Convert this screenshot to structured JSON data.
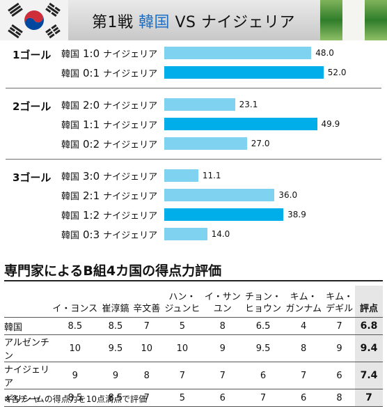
{
  "header": {
    "title_prefix": "第1戦",
    "title_korea": "韓国",
    "title_suffix": "VS ナイジェリア",
    "flags": [
      "korea-flag",
      "nigeria-flag"
    ]
  },
  "colors": {
    "bar_light": "#7fd3f0",
    "bar_dark": "#00aeea",
    "accent": "#1c6fc4"
  },
  "chart_data": [
    {
      "type": "bar",
      "orientation": "horizontal",
      "groups": [
        {
          "label": "1ゴール",
          "rows": [
            {
              "korea": "韓国",
              "score": "1:0",
              "nigeria": "ナイジェリア",
              "value": 48.0,
              "display": "48.0",
              "highlight": false
            },
            {
              "korea": "韓国",
              "score": "0:1",
              "nigeria": "ナイジェリア",
              "value": 52.0,
              "display": "52.0",
              "highlight": true
            }
          ]
        },
        {
          "label": "2ゴール",
          "rows": [
            {
              "korea": "韓国",
              "score": "2:0",
              "nigeria": "ナイジェリア",
              "value": 23.1,
              "display": "23.1",
              "highlight": false
            },
            {
              "korea": "韓国",
              "score": "1:1",
              "nigeria": "ナイジェリア",
              "value": 49.9,
              "display": "49.9",
              "highlight": true
            },
            {
              "korea": "韓国",
              "score": "0:2",
              "nigeria": "ナイジェリア",
              "value": 27.0,
              "display": "27.0",
              "highlight": false
            }
          ]
        },
        {
          "label": "3ゴール",
          "rows": [
            {
              "korea": "韓国",
              "score": "3:0",
              "nigeria": "ナイジェリア",
              "value": 11.1,
              "display": "11.1",
              "highlight": false
            },
            {
              "korea": "韓国",
              "score": "2:1",
              "nigeria": "ナイジェリア",
              "value": 36.0,
              "display": "36.0",
              "highlight": false
            },
            {
              "korea": "韓国",
              "score": "1:2",
              "nigeria": "ナイジェリア",
              "value": 38.9,
              "display": "38.9",
              "highlight": true
            },
            {
              "korea": "韓国",
              "score": "0:3",
              "nigeria": "ナイジェリア",
              "value": 14.0,
              "display": "14.0",
              "highlight": false
            }
          ]
        }
      ]
    },
    {
      "type": "table",
      "title": "専門家によるB組4カ国の得点力評価",
      "columns": [
        "イ・ヨンス",
        "崔淳鎬",
        "辛文善",
        "ハン・ジュンヒ",
        "イ・サンユン",
        "チョン・ヒョウン",
        "キム・ガンナム",
        "キム・デギル",
        "評点"
      ],
      "rows": [
        {
          "team": "韓国",
          "values": [
            "8.5",
            "8.5",
            "7",
            "5",
            "8",
            "6.5",
            "4",
            "7"
          ],
          "rating": "6.8"
        },
        {
          "team": "アルゼンチン",
          "values": [
            "10",
            "9.5",
            "10",
            "10",
            "9",
            "9.5",
            "8",
            "9"
          ],
          "rating": "9.4"
        },
        {
          "team": "ナイジェリア",
          "values": [
            "9",
            "9",
            "8",
            "7",
            "7",
            "6",
            "7",
            "6"
          ],
          "rating": "7.4"
        },
        {
          "team": "ギリシャ",
          "values": [
            "8.5",
            "8.5",
            "7",
            "5",
            "6",
            "7",
            "6",
            "8"
          ],
          "rating": "7"
        }
      ],
      "note": "※各チームの得点力を10点満点で評価"
    }
  ]
}
